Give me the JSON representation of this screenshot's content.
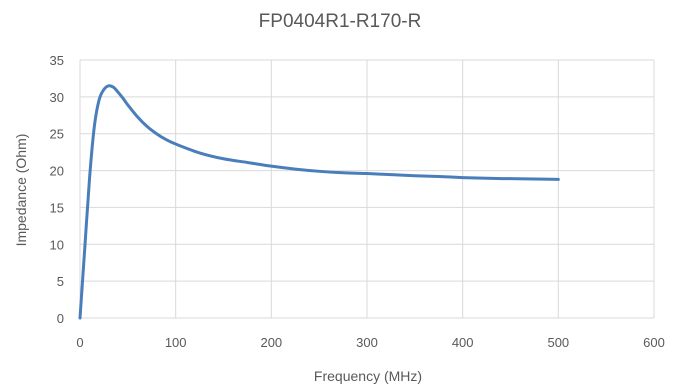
{
  "chart_data": {
    "type": "line",
    "title": "FP0404R1-R170-R",
    "xlabel": "Frequency (MHz)",
    "ylabel": "Impedance (Ohm)",
    "xlim": [
      0,
      600
    ],
    "ylim": [
      0,
      35
    ],
    "xticks": [
      0,
      100,
      200,
      300,
      400,
      500,
      600
    ],
    "yticks": [
      0,
      5,
      10,
      15,
      20,
      25,
      30,
      35
    ],
    "grid": true,
    "legend": "none",
    "series": [
      {
        "color": "#4a7ebb",
        "x": [
          0,
          5,
          10,
          15,
          20,
          25,
          30,
          35,
          40,
          45,
          50,
          60,
          70,
          80,
          90,
          100,
          125,
          150,
          175,
          200,
          225,
          250,
          275,
          300,
          325,
          350,
          375,
          400,
          425,
          450,
          475,
          500
        ],
        "y": [
          0,
          9.5,
          19,
          26,
          29.6,
          31.0,
          31.5,
          31.3,
          30.6,
          29.8,
          28.9,
          27.3,
          26.0,
          25.0,
          24.2,
          23.6,
          22.4,
          21.6,
          21.1,
          20.6,
          20.2,
          19.9,
          19.7,
          19.6,
          19.45,
          19.3,
          19.2,
          19.05,
          18.95,
          18.9,
          18.85,
          18.8
        ]
      }
    ]
  }
}
